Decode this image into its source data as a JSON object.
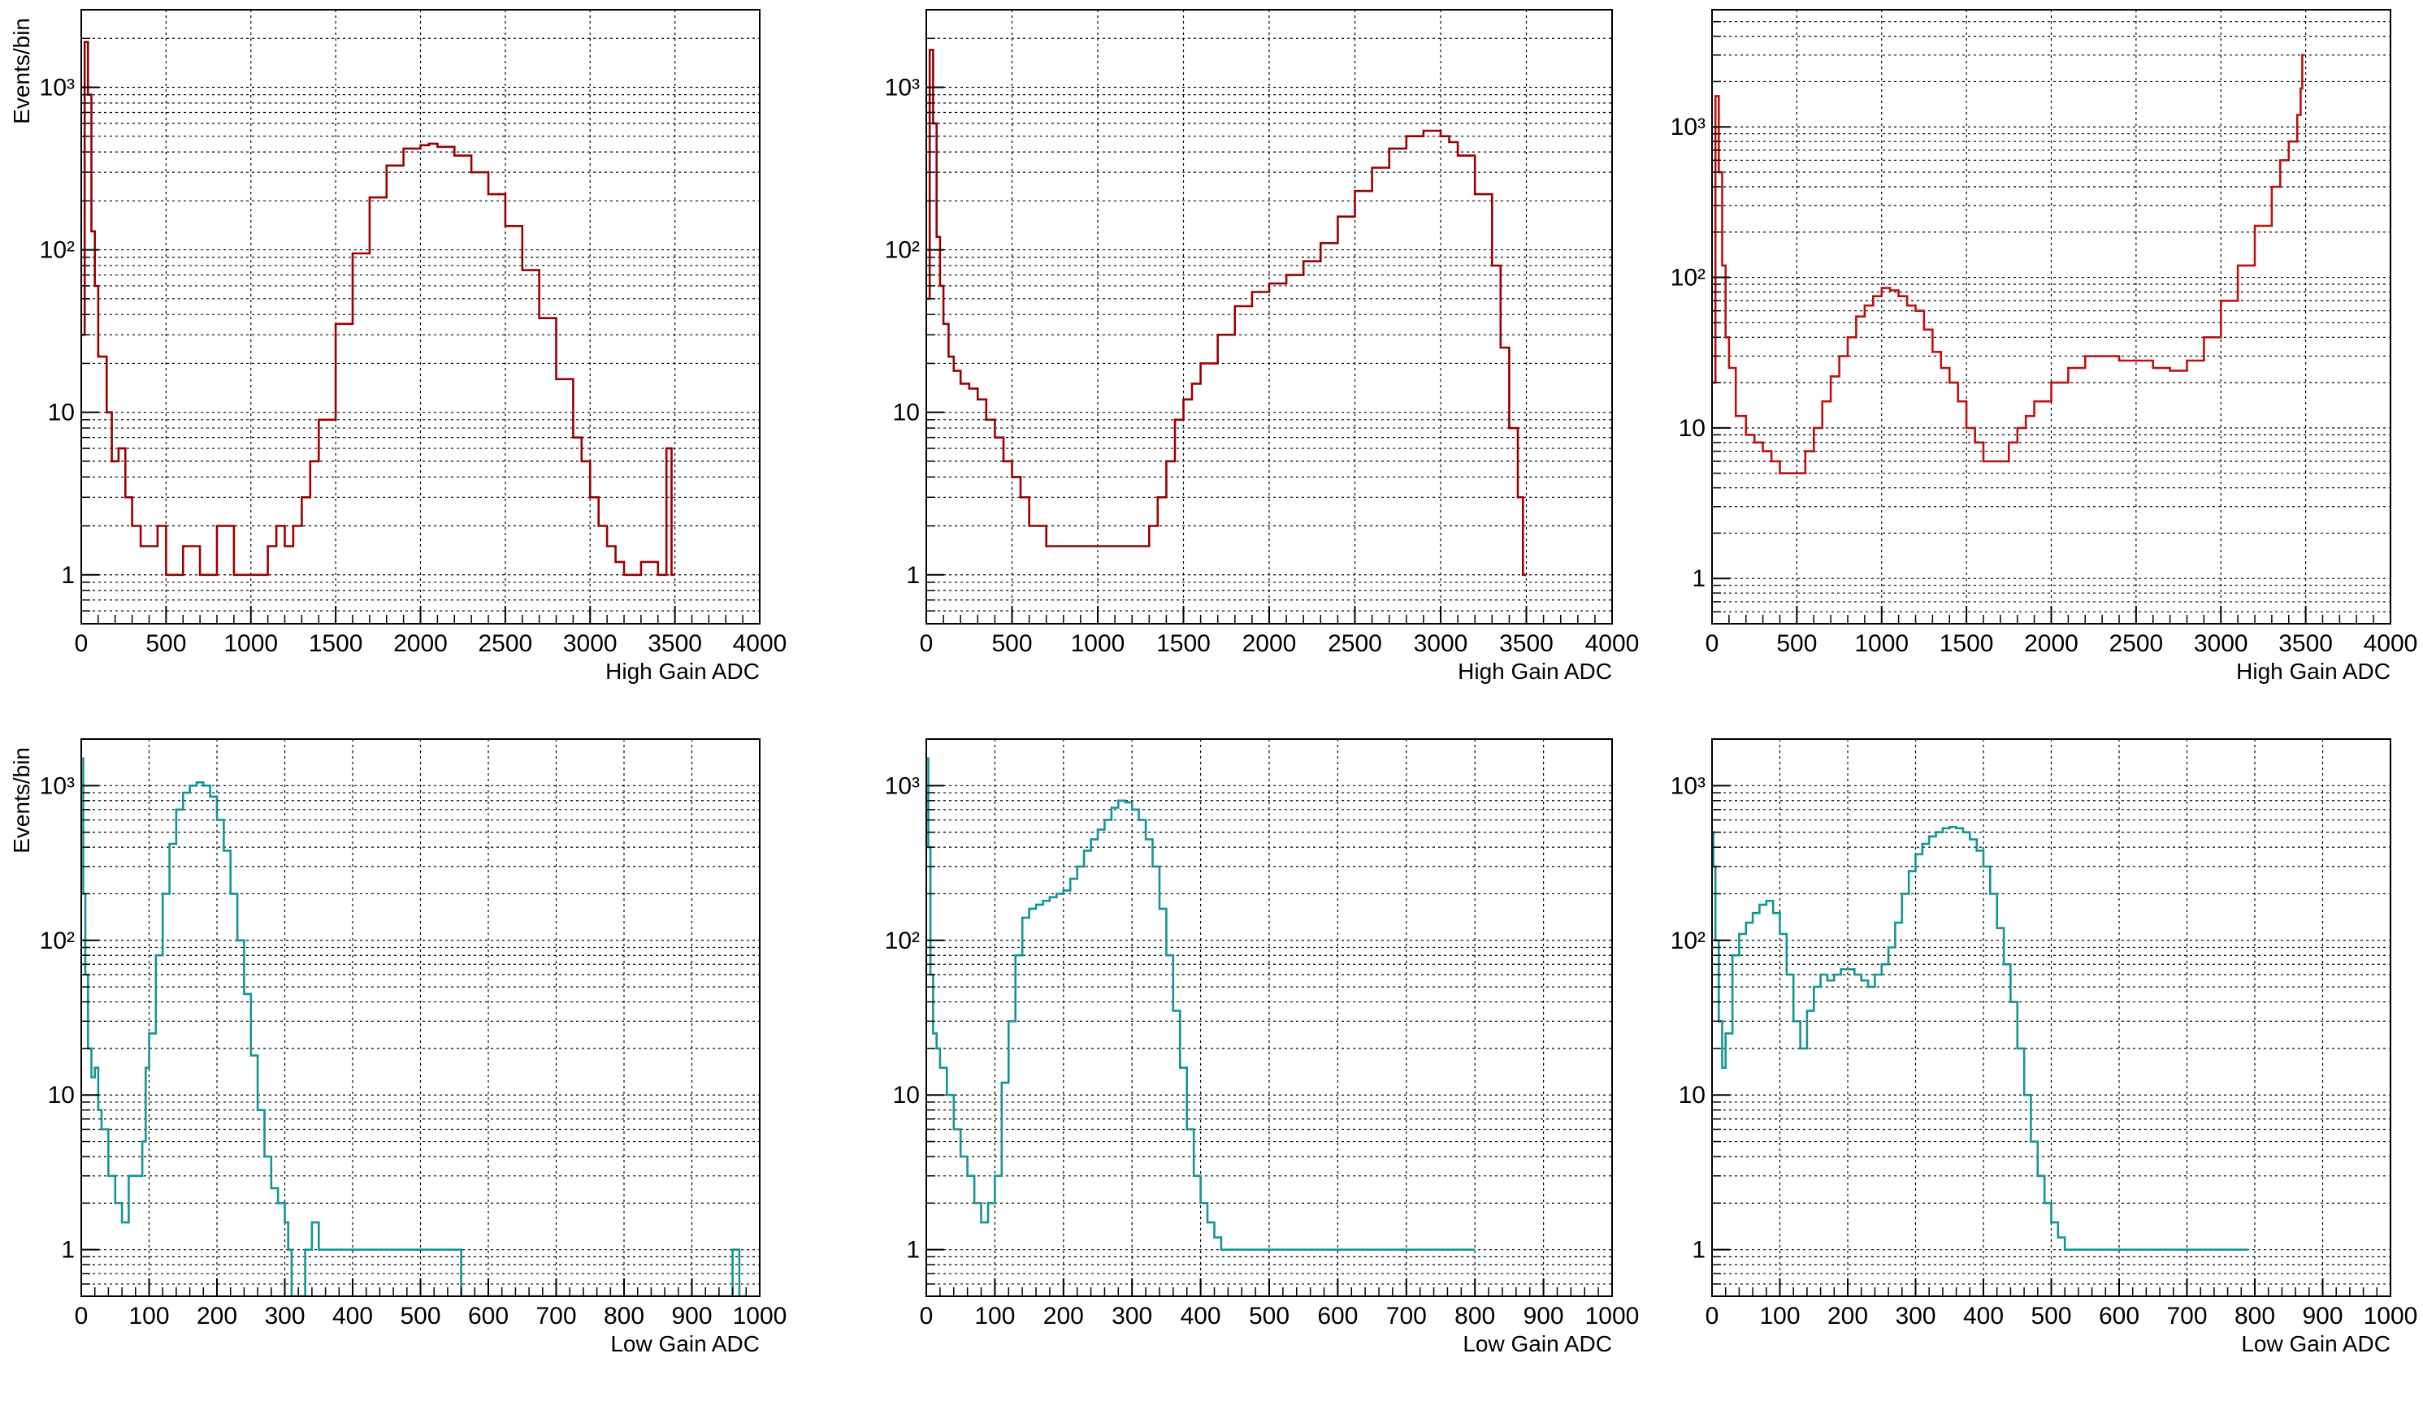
{
  "chart_data": [
    {
      "type": "line",
      "render": "histogram-step",
      "color": "#990000",
      "title": "",
      "xlabel": "High Gain ADC",
      "ylabel": "Events/bin",
      "xlim": [
        0,
        4000
      ],
      "ylim": [
        0.5,
        3000
      ],
      "yscale": "log",
      "grid": true,
      "xticks": [
        "0",
        "500",
        "1000",
        "1500",
        "2000",
        "2500",
        "3000",
        "3500",
        "4000"
      ],
      "yticks": [
        {
          "v": 1,
          "t": "1"
        },
        {
          "v": 10,
          "t": "10"
        },
        {
          "v": 100,
          "t": "10²"
        },
        {
          "v": 1000,
          "t": "10³"
        }
      ],
      "series": [
        {
          "x": [
            0,
            20,
            40,
            60,
            80,
            100,
            150,
            180,
            220,
            260,
            300,
            350,
            400,
            450,
            500,
            600,
            700,
            800,
            900,
            1000,
            1100,
            1150,
            1200,
            1250,
            1300,
            1350,
            1400,
            1500,
            1600,
            1700,
            1800,
            1900,
            2000,
            2050,
            2100,
            2200,
            2300,
            2400,
            2500,
            2600,
            2700,
            2800,
            2900,
            2950,
            3000,
            3050,
            3100,
            3150,
            3200,
            3300,
            3400,
            3450,
            3480,
            3500
          ],
          "y": [
            30,
            1900,
            900,
            130,
            60,
            22,
            10,
            5,
            6,
            3,
            2,
            1.5,
            1.5,
            2,
            1,
            1.5,
            1,
            2,
            1,
            1,
            1.5,
            2,
            1.5,
            2,
            3,
            5,
            9,
            35,
            95,
            210,
            330,
            420,
            440,
            450,
            430,
            380,
            300,
            220,
            140,
            75,
            38,
            16,
            7,
            5,
            3,
            2,
            1.5,
            1.2,
            1,
            1.2,
            1,
            6,
            1,
            0.4
          ]
        }
      ]
    },
    {
      "type": "line",
      "render": "histogram-step",
      "color": "#990000",
      "title": "",
      "xlabel": "High Gain ADC",
      "ylabel": "",
      "xlim": [
        0,
        4000
      ],
      "ylim": [
        0.5,
        3000
      ],
      "yscale": "log",
      "grid": true,
      "xticks": [
        "0",
        "500",
        "1000",
        "1500",
        "2000",
        "2500",
        "3000",
        "3500",
        "4000"
      ],
      "yticks": [
        {
          "v": 1,
          "t": "1"
        },
        {
          "v": 10,
          "t": "10"
        },
        {
          "v": 100,
          "t": "10²"
        },
        {
          "v": 1000,
          "t": "10³"
        }
      ],
      "series": [
        {
          "x": [
            0,
            20,
            40,
            60,
            80,
            100,
            130,
            160,
            200,
            250,
            300,
            350,
            400,
            450,
            500,
            550,
            600,
            700,
            800,
            900,
            1000,
            1100,
            1200,
            1300,
            1350,
            1400,
            1450,
            1500,
            1550,
            1600,
            1700,
            1800,
            1900,
            2000,
            2100,
            2200,
            2300,
            2400,
            2500,
            2600,
            2700,
            2800,
            2900,
            3000,
            3050,
            3100,
            3200,
            3300,
            3350,
            3400,
            3450,
            3480,
            3500
          ],
          "y": [
            50,
            1700,
            600,
            120,
            60,
            35,
            22,
            18,
            15,
            14,
            12,
            9,
            7,
            5,
            4,
            3,
            2,
            1.5,
            1.5,
            1.5,
            1.5,
            1.5,
            1.5,
            2,
            3,
            5,
            9,
            12,
            15,
            20,
            30,
            45,
            55,
            62,
            70,
            85,
            110,
            160,
            230,
            320,
            420,
            500,
            540,
            500,
            460,
            380,
            220,
            80,
            25,
            8,
            3,
            1,
            0.4
          ]
        }
      ]
    },
    {
      "type": "line",
      "render": "histogram-step",
      "color": "#bb1111",
      "title": "",
      "xlabel": "High Gain ADC",
      "ylabel": "",
      "xlim": [
        0,
        4000
      ],
      "ylim": [
        0.5,
        6000
      ],
      "yscale": "log",
      "grid": true,
      "xticks": [
        "0",
        "500",
        "1000",
        "1500",
        "2000",
        "2500",
        "3000",
        "3500",
        "4000"
      ],
      "yticks": [
        {
          "v": 1,
          "t": "1"
        },
        {
          "v": 10,
          "t": "10"
        },
        {
          "v": 100,
          "t": "10²"
        },
        {
          "v": 1000,
          "t": "10³"
        }
      ],
      "series": [
        {
          "x": [
            0,
            20,
            40,
            60,
            80,
            100,
            140,
            200,
            250,
            300,
            350,
            400,
            450,
            500,
            550,
            600,
            650,
            700,
            750,
            800,
            850,
            900,
            950,
            1000,
            1050,
            1100,
            1150,
            1200,
            1250,
            1300,
            1350,
            1400,
            1450,
            1500,
            1550,
            1600,
            1650,
            1700,
            1750,
            1800,
            1850,
            1900,
            2000,
            2100,
            2200,
            2300,
            2400,
            2500,
            2600,
            2700,
            2800,
            2900,
            3000,
            3100,
            3200,
            3300,
            3350,
            3400,
            3450,
            3470,
            3480,
            3490
          ],
          "y": [
            20,
            1600,
            500,
            120,
            40,
            25,
            12,
            9,
            8,
            7,
            6,
            5,
            5,
            5,
            7,
            10,
            15,
            22,
            30,
            40,
            55,
            65,
            75,
            85,
            82,
            75,
            65,
            60,
            45,
            32,
            25,
            20,
            15,
            10,
            8,
            6,
            6,
            6,
            8,
            10,
            12,
            15,
            20,
            25,
            30,
            30,
            28,
            28,
            25,
            24,
            28,
            40,
            70,
            120,
            220,
            400,
            600,
            800,
            1200,
            1800,
            3000,
            0.5
          ]
        }
      ]
    },
    {
      "type": "line",
      "render": "histogram-step",
      "color": "#149494",
      "title": "",
      "xlabel": "Low Gain ADC",
      "ylabel": "Events/bin",
      "xlim": [
        0,
        1000
      ],
      "ylim": [
        0.5,
        2000
      ],
      "yscale": "log",
      "grid": true,
      "xticks": [
        "0",
        "100",
        "200",
        "300",
        "400",
        "500",
        "600",
        "700",
        "800",
        "900",
        "1000"
      ],
      "yticks": [
        {
          "v": 1,
          "t": "1"
        },
        {
          "v": 10,
          "t": "10"
        },
        {
          "v": 100,
          "t": "10²"
        },
        {
          "v": 1000,
          "t": "10³"
        }
      ],
      "series": [
        {
          "x": [
            0,
            3,
            6,
            10,
            15,
            20,
            25,
            30,
            40,
            50,
            60,
            70,
            80,
            90,
            95,
            100,
            110,
            120,
            130,
            140,
            150,
            160,
            170,
            180,
            190,
            200,
            210,
            220,
            230,
            240,
            250,
            260,
            270,
            280,
            290,
            300,
            305,
            310,
            330,
            340,
            350,
            360,
            380,
            400,
            420,
            450,
            480,
            500,
            550,
            560,
            600,
            700,
            800,
            900,
            960,
            970,
            980
          ],
          "y": [
            1500,
            200,
            60,
            20,
            13,
            15,
            8,
            6,
            3,
            2,
            1.5,
            3,
            3,
            5,
            15,
            25,
            80,
            200,
            420,
            700,
            900,
            1000,
            1050,
            1000,
            850,
            600,
            380,
            200,
            100,
            45,
            18,
            8,
            4,
            2.5,
            2,
            1.5,
            1,
            0.4,
            1,
            1.5,
            1,
            1,
            1,
            1,
            1,
            1,
            1,
            1,
            1,
            0.4,
            0.4,
            0.4,
            0.4,
            0.4,
            1,
            0.4,
            0.4
          ]
        }
      ]
    },
    {
      "type": "line",
      "render": "histogram-step",
      "color": "#149494",
      "title": "",
      "xlabel": "Low Gain ADC",
      "ylabel": "",
      "xlim": [
        0,
        1000
      ],
      "ylim": [
        0.5,
        2000
      ],
      "yscale": "log",
      "grid": true,
      "xticks": [
        "0",
        "100",
        "200",
        "300",
        "400",
        "500",
        "600",
        "700",
        "800",
        "900",
        "1000"
      ],
      "yticks": [
        {
          "v": 1,
          "t": "1"
        },
        {
          "v": 10,
          "t": "10"
        },
        {
          "v": 100,
          "t": "10²"
        },
        {
          "v": 1000,
          "t": "10³"
        }
      ],
      "series": [
        {
          "x": [
            0,
            3,
            6,
            10,
            15,
            20,
            30,
            40,
            50,
            60,
            70,
            80,
            90,
            100,
            110,
            120,
            130,
            140,
            150,
            160,
            170,
            180,
            190,
            200,
            210,
            220,
            230,
            240,
            250,
            260,
            270,
            280,
            290,
            300,
            310,
            320,
            330,
            340,
            350,
            360,
            370,
            380,
            390,
            400,
            410,
            420,
            430,
            440,
            450,
            460,
            480,
            500,
            550,
            580,
            600,
            650,
            700,
            750,
            780,
            800
          ],
          "y": [
            1500,
            400,
            60,
            25,
            20,
            15,
            10,
            6,
            4,
            3,
            2,
            1.5,
            2,
            3,
            12,
            30,
            80,
            140,
            160,
            170,
            180,
            190,
            200,
            210,
            250,
            300,
            380,
            450,
            520,
            600,
            720,
            800,
            780,
            700,
            600,
            450,
            300,
            160,
            80,
            35,
            15,
            6,
            3,
            2,
            1.5,
            1.2,
            1,
            1,
            1,
            1,
            1,
            1,
            1,
            1,
            1,
            1,
            1,
            1,
            1,
            0.4
          ]
        }
      ]
    },
    {
      "type": "line",
      "render": "histogram-step",
      "color": "#149494",
      "title": "",
      "xlabel": "Low Gain ADC",
      "ylabel": "",
      "xlim": [
        0,
        1000
      ],
      "ylim": [
        0.5,
        2000
      ],
      "yscale": "log",
      "grid": true,
      "xticks": [
        "0",
        "100",
        "200",
        "300",
        "400",
        "500",
        "600",
        "700",
        "800",
        "900",
        "1000"
      ],
      "yticks": [
        {
          "v": 1,
          "t": "1"
        },
        {
          "v": 10,
          "t": "10"
        },
        {
          "v": 100,
          "t": "10²"
        },
        {
          "v": 1000,
          "t": "10³"
        }
      ],
      "series": [
        {
          "x": [
            0,
            2,
            5,
            10,
            15,
            20,
            30,
            40,
            50,
            60,
            70,
            80,
            90,
            100,
            110,
            120,
            130,
            140,
            150,
            160,
            170,
            180,
            190,
            200,
            210,
            220,
            230,
            240,
            250,
            260,
            270,
            280,
            290,
            300,
            310,
            320,
            330,
            340,
            350,
            360,
            370,
            380,
            390,
            400,
            410,
            420,
            430,
            440,
            450,
            460,
            470,
            480,
            490,
            500,
            510,
            520,
            530,
            540,
            550,
            560,
            580,
            600,
            650,
            700,
            750,
            790
          ],
          "y": [
            500,
            300,
            100,
            30,
            15,
            25,
            80,
            110,
            130,
            150,
            170,
            180,
            150,
            110,
            60,
            30,
            20,
            35,
            50,
            60,
            55,
            60,
            65,
            65,
            60,
            55,
            50,
            60,
            70,
            90,
            130,
            200,
            280,
            360,
            420,
            470,
            500,
            530,
            540,
            530,
            500,
            450,
            380,
            300,
            200,
            120,
            70,
            40,
            20,
            10,
            5,
            3,
            2,
            1.5,
            1.2,
            1,
            1,
            1,
            1,
            1,
            1,
            1,
            1,
            1,
            1,
            0.4
          ]
        }
      ]
    }
  ]
}
